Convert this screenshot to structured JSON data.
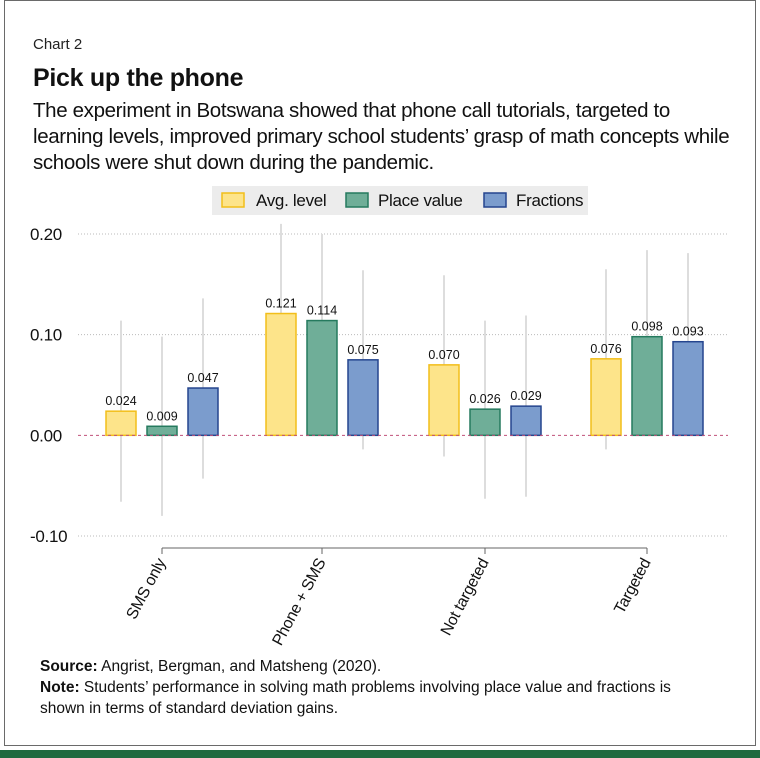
{
  "chart_number": "Chart 2",
  "title": "Pick up the phone",
  "subtitle": "The experiment in Botswana showed that phone call tutorials, targeted to learning levels, improved primary school students’ grasp of math concepts while schools were shut down during the pandemic.",
  "source_label": "Source:",
  "source_text": " Angrist, Bergman, and Matsheng (2020).",
  "note_label": "Note:",
  "note_text": " Students’ performance in solving math problems involving place value and fractions is shown in terms of standard deviation gains.",
  "colors": {
    "avg_fill": "#fde48a",
    "avg_stroke": "#f2be1a",
    "place_fill": "#6fae98",
    "place_stroke": "#257a5e",
    "frac_fill": "#7b9ccd",
    "frac_stroke": "#25458e",
    "zero_line": "#c0507a",
    "grid": "#bbbbbb",
    "errorbar": "#dddddd",
    "brand_bar": "#1f6a3f"
  },
  "chart_data": {
    "type": "bar",
    "categories": [
      "SMS only",
      "Phone + SMS",
      "Not targeted",
      "Targeted"
    ],
    "series": [
      {
        "name": "Avg. level",
        "values": [
          0.024,
          0.121,
          0.07,
          0.076
        ],
        "labels": [
          "0.024",
          "0.121",
          "0.070",
          "0.076"
        ],
        "ci": [
          [
            -0.066,
            0.114
          ],
          [
            0.031,
            0.21
          ],
          [
            -0.021,
            0.159
          ],
          [
            -0.014,
            0.165
          ]
        ]
      },
      {
        "name": "Place value",
        "values": [
          0.009,
          0.114,
          0.026,
          0.098
        ],
        "labels": [
          "0.009",
          "0.114",
          "0.026",
          "0.098"
        ],
        "ci": [
          [
            -0.08,
            0.098
          ],
          [
            0.028,
            0.2
          ],
          [
            -0.063,
            0.114
          ],
          [
            0.012,
            0.184
          ]
        ]
      },
      {
        "name": "Fractions",
        "values": [
          0.047,
          0.075,
          0.029,
          0.093
        ],
        "labels": [
          "0.047",
          "0.075",
          "0.029",
          "0.093"
        ],
        "ci": [
          [
            -0.043,
            0.136
          ],
          [
            -0.014,
            0.164
          ],
          [
            -0.061,
            0.119
          ],
          [
            0.004,
            0.181
          ]
        ]
      }
    ],
    "yticks": [
      0.2,
      0.1,
      0.0,
      -0.1
    ],
    "ytick_labels": [
      "0.20",
      "0.10",
      "0.00",
      "-0.10"
    ],
    "ylim": [
      -0.1,
      0.2
    ],
    "xlabel": "",
    "ylabel": "",
    "legend_position": "top"
  }
}
